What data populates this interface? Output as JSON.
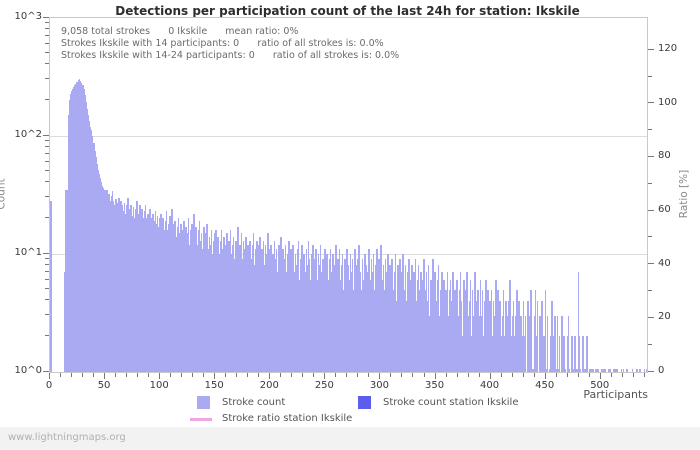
{
  "title": "Detections per participation count of the last 24h for station: Ikskile",
  "annotations": [
    "9,058 total strokes      0 Ikskile      mean ratio: 0%",
    "Strokes Ikskile with 14 participants: 0      ratio of all strokes is: 0.0%",
    "Strokes Ikskile with 14-24 participants: 0      ratio of all strokes is: 0.0%"
  ],
  "stats": {
    "total_strokes": "9,058",
    "station_strokes": "0",
    "station_name": "Ikskile",
    "mean_ratio": "0%"
  },
  "watermark": "www.lightningmaps.org",
  "legend": {
    "stroke_count": "Stroke count",
    "stroke_count_station": "Stroke count station Ikskile",
    "stroke_ratio_station": "Stroke ratio station Ikskile"
  },
  "colors": {
    "bar": "#a9aaf2",
    "bar_station": "#5c5cee",
    "ratio_line": "#f0a6e6",
    "grid": "#dcdcdc",
    "border": "#c9c9c9"
  },
  "chart_data": {
    "type": "bar",
    "title": "Detections per participation count of the last 24h for station: Ikskile",
    "xlabel": "Participants",
    "ylabel_left": "Count",
    "ylabel_right": "Ratio [%]",
    "y_scale": "log10",
    "y_ticks": [
      "10^0",
      "10^1",
      "10^2",
      "10^3"
    ],
    "ylim": [
      1,
      1000
    ],
    "right_ticks": [
      0,
      20,
      40,
      60,
      80,
      100,
      120
    ],
    "right_minor_ticks": [
      10,
      30,
      50,
      70,
      90,
      110
    ],
    "right_lim": [
      0,
      132
    ],
    "x_ticks": [
      0,
      50,
      100,
      150,
      200,
      250,
      300,
      350,
      400,
      450,
      500
    ],
    "x_minor_step": 10,
    "x_max": 542,
    "grid": "horizontal-decades",
    "legend_position": "bottom",
    "series": [
      {
        "name": "Stroke count",
        "color": "#a9aaf2",
        "x_start": 0,
        "values": [
          28,
          0,
          0,
          0,
          0,
          0,
          0,
          0,
          0,
          0,
          0,
          0,
          0,
          7,
          35,
          35,
          150,
          200,
          225,
          240,
          250,
          258,
          268,
          278,
          288,
          298,
          305,
          295,
          282,
          272,
          248,
          222,
          196,
          168,
          150,
          135,
          120,
          112,
          100,
          88,
          75,
          66,
          58,
          52,
          48,
          44,
          41,
          38,
          36,
          35,
          33,
          35,
          30,
          32,
          28,
          31,
          34,
          28,
          26,
          29,
          27,
          25,
          30,
          24,
          28,
          26,
          23,
          27,
          22,
          26,
          30,
          24,
          22,
          26,
          21,
          25,
          20,
          24,
          28,
          22,
          22,
          26,
          21,
          24,
          20,
          23,
          26,
          20,
          22,
          19,
          24,
          20,
          18,
          22,
          19,
          23,
          18,
          21,
          17,
          20,
          22,
          17,
          20,
          16,
          19,
          23,
          16,
          18,
          21,
          15,
          24,
          18,
          15,
          19,
          14,
          17,
          20,
          15,
          18,
          13,
          16,
          19,
          13,
          17,
          15,
          20,
          12,
          16,
          18,
          14,
          22,
          14,
          17,
          12,
          16,
          19,
          13,
          15,
          11,
          17,
          12,
          15,
          18,
          11,
          14,
          12,
          16,
          10,
          13,
          15,
          16,
          12,
          14,
          10,
          13,
          16,
          11,
          14,
          9,
          12,
          15,
          11,
          13,
          16,
          10,
          12,
          14,
          9,
          13,
          11,
          17,
          10,
          12,
          15,
          9,
          13,
          11,
          14,
          8,
          12,
          10,
          13,
          9,
          12,
          15,
          8,
          11,
          13,
          9,
          12,
          14,
          9,
          11,
          13,
          8,
          12,
          10,
          15,
          9,
          11,
          12,
          8,
          10,
          13,
          9,
          11,
          7,
          12,
          10,
          14,
          8,
          11,
          9,
          12,
          7,
          10,
          13,
          8,
          11,
          9,
          12,
          7,
          10,
          8,
          11,
          13,
          6,
          9,
          12,
          8,
          10,
          7,
          11,
          8,
          13,
          9,
          6,
          10,
          12,
          7,
          9,
          11,
          6,
          10,
          8,
          12,
          7,
          9,
          5,
          11,
          8,
          10,
          6,
          9,
          11,
          7,
          10,
          5,
          8,
          12,
          7,
          9,
          11,
          6,
          8,
          10,
          5,
          9,
          7,
          11,
          8,
          6,
          10,
          7,
          9,
          5,
          11,
          8,
          6,
          9,
          12,
          7,
          5,
          9,
          6,
          10,
          8,
          5,
          7,
          11,
          6,
          9,
          7,
          10,
          5,
          8,
          11,
          6,
          9,
          7,
          12,
          6,
          8,
          5,
          9,
          7,
          10,
          4,
          8,
          6,
          9,
          5,
          7,
          10,
          4,
          8,
          6,
          9,
          5,
          7,
          10,
          5,
          8,
          4,
          7,
          9,
          5,
          6,
          8,
          4,
          7,
          9,
          4,
          6,
          8,
          5,
          7,
          3,
          6,
          9,
          5,
          7,
          4,
          8,
          3,
          6,
          5,
          9,
          4,
          7,
          4,
          6,
          8,
          3,
          5,
          7,
          4,
          6,
          3,
          5,
          7,
          3,
          5,
          6,
          4,
          7,
          3,
          5,
          4,
          6,
          3,
          5,
          7,
          4,
          2,
          6,
          3,
          5,
          7,
          3,
          4,
          6,
          2,
          5,
          3,
          7,
          4,
          2,
          5,
          3,
          6,
          3,
          5,
          2,
          4,
          6,
          3,
          5,
          2,
          4,
          5,
          2,
          4,
          3,
          6,
          2,
          5,
          3,
          4,
          2,
          3,
          5,
          2,
          4,
          3,
          2,
          4,
          6,
          2,
          3,
          4,
          2,
          3,
          5,
          2,
          4,
          2,
          3,
          2,
          4,
          2,
          3,
          0,
          4,
          2,
          3,
          5,
          0,
          1,
          3,
          5,
          2,
          4,
          0,
          3,
          2,
          4,
          1,
          2,
          5,
          1,
          3,
          0,
          1,
          2,
          4,
          0,
          2,
          3,
          1,
          3,
          1,
          2,
          0,
          3,
          1,
          2,
          1,
          0,
          2,
          3,
          1,
          0,
          2,
          1,
          0,
          2,
          1,
          1,
          7,
          2,
          1,
          0,
          2,
          1,
          0,
          1,
          2,
          0,
          1,
          1,
          1,
          1,
          0,
          0,
          1,
          1,
          1,
          0,
          0,
          1,
          1,
          1,
          1,
          0,
          0,
          0,
          1,
          1,
          0,
          0,
          1,
          1,
          1,
          1,
          0,
          0,
          0,
          1,
          0,
          1,
          0,
          0,
          1,
          0,
          0,
          0,
          0,
          1,
          0,
          0,
          0,
          1,
          0,
          0,
          1,
          0,
          0,
          0,
          1,
          0,
          1
        ]
      },
      {
        "name": "Stroke count station Ikskile",
        "color": "#5c5cee",
        "constant_value": 0
      },
      {
        "name": "Stroke ratio station Ikskile",
        "type": "line",
        "color": "#f0a6e6",
        "constant_value": 0
      }
    ]
  }
}
